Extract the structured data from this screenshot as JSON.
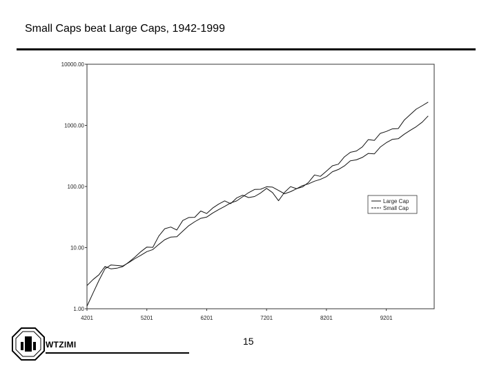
{
  "slide": {
    "title": "Small Caps beat Large Caps, 1942-1999",
    "page_number": "15",
    "logo_text": "WTZIMI"
  },
  "colors": {
    "line": "#111111",
    "frame": "#333333",
    "accent_rule": "#000000"
  },
  "chart_data": {
    "type": "line",
    "title": "",
    "xlabel": "",
    "ylabel": "",
    "y_scale": "log",
    "ylim": [
      1,
      10000
    ],
    "y_ticks": [
      1,
      10,
      100,
      1000,
      10000
    ],
    "y_tick_labels": [
      "1.00",
      "10.00",
      "100.00",
      "1000.00",
      "10000.00"
    ],
    "x_ticks": [
      1942,
      1952,
      1962,
      1972,
      1982,
      1992
    ],
    "x_tick_labels": [
      "4201",
      "5201",
      "6201",
      "7201",
      "8201",
      "9201"
    ],
    "xlim": [
      1942,
      2000
    ],
    "legend_position": "right",
    "grid": false,
    "series": [
      {
        "name": "Large Cap",
        "x": [
          1942,
          1943,
          1944,
          1945,
          1946,
          1947,
          1948,
          1949,
          1950,
          1951,
          1952,
          1953,
          1954,
          1955,
          1956,
          1957,
          1958,
          1959,
          1960,
          1961,
          1962,
          1963,
          1964,
          1965,
          1966,
          1967,
          1968,
          1969,
          1970,
          1971,
          1972,
          1973,
          1974,
          1975,
          1976,
          1977,
          1978,
          1979,
          1980,
          1981,
          1982,
          1983,
          1984,
          1985,
          1986,
          1987,
          1988,
          1989,
          1990,
          1991,
          1992,
          1993,
          1994,
          1995,
          1996,
          1997,
          1998,
          1999
        ],
        "values": [
          2.4,
          3.0,
          3.6,
          4.9,
          4.5,
          4.6,
          4.9,
          5.8,
          7.0,
          8.6,
          10.2,
          10.1,
          15.5,
          20.4,
          21.7,
          19.4,
          27.8,
          31.1,
          31.3,
          39.7,
          36.2,
          44.4,
          51.7,
          58.2,
          52.3,
          64.9,
          72.1,
          66.0,
          68.6,
          78.4,
          93.3,
          79.6,
          58.5,
          80.2,
          99.4,
          92.3,
          98.3,
          116.5,
          154.3,
          146.7,
          178.2,
          218.3,
          232.0,
          305.3,
          362.3,
          381.3,
          444.6,
          585.1,
          567.0,
          739.2,
          795.6,
          875.4,
          886.6,
          1219.7,
          1500.0,
          1842.0,
          2100.0,
          2402.0
        ]
      },
      {
        "name": "Small Cap",
        "x": [
          1942,
          1943,
          1944,
          1945,
          1946,
          1947,
          1948,
          1949,
          1950,
          1951,
          1952,
          1953,
          1954,
          1955,
          1956,
          1957,
          1958,
          1959,
          1960,
          1961,
          1962,
          1963,
          1964,
          1965,
          1966,
          1967,
          1968,
          1969,
          1970,
          1971,
          1972,
          1973,
          1974,
          1975,
          1976,
          1977,
          1978,
          1979,
          1980,
          1981,
          1982,
          1983,
          1984,
          1985,
          1986,
          1987,
          1988,
          1989,
          1990,
          1991,
          1992,
          1993,
          1994,
          1995,
          1996,
          1997,
          1998,
          1999
        ],
        "values": [
          1.1,
          1.8,
          2.9,
          4.5,
          5.2,
          5.1,
          5.0,
          5.7,
          6.6,
          7.5,
          8.6,
          9.3,
          11.3,
          13.5,
          14.9,
          15.1,
          18.6,
          22.8,
          26.5,
          30.1,
          31.6,
          36.8,
          41.9,
          47.3,
          53.9,
          58.1,
          67.8,
          79.3,
          89.5,
          90.1,
          99.0,
          97.6,
          86.2,
          76.0,
          82.3,
          91.8,
          103.5,
          110.4,
          122.3,
          130.6,
          145.1,
          174.6,
          189.5,
          217.0,
          262.9,
          272.8,
          299.0,
          347.3,
          341.6,
          441.4,
          520.9,
          589.2,
          604.6,
          716.6,
          828.4,
          952.7,
          1129.0,
          1430.0
        ]
      }
    ]
  }
}
